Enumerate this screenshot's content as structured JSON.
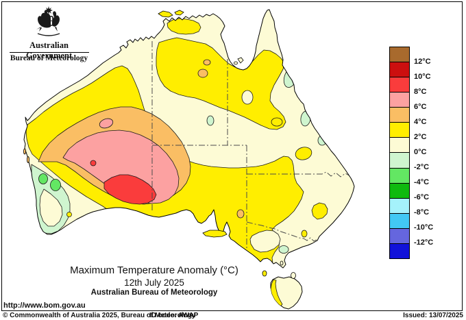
{
  "header": {
    "gov_label": "Australian Government",
    "bureau_label": "Bureau of Meteorology"
  },
  "legend": {
    "labels": [
      "12°C",
      "10°C",
      "8°C",
      "6°C",
      "4°C",
      "2°C",
      "0°C",
      "-2°C",
      "-4°C",
      "-6°C",
      "-8°C",
      "-10°C",
      "-12°C"
    ],
    "colors": [
      "#a86a2d",
      "#cc0f0f",
      "#fa3c3c",
      "#fca1a1",
      "#fabe64",
      "#ffee00",
      "#fdfbd5",
      "#cff5cf",
      "#63e763",
      "#0fba0f",
      "#a5f2fb",
      "#42c8f4",
      "#6566de",
      "#1112d9"
    ]
  },
  "caption": {
    "title": "Maximum Temperature Anomaly (°C)",
    "date": "12th July 2025",
    "org": "Australian Bureau of Meteorology"
  },
  "url": "http://www.bom.gov.au",
  "footer": {
    "copyright": "© Commonwealth of Australia 2025, Bureau of Meteorology",
    "id_code": "ID code: AWAP",
    "issued": "Issued: 13/07/2025"
  }
}
